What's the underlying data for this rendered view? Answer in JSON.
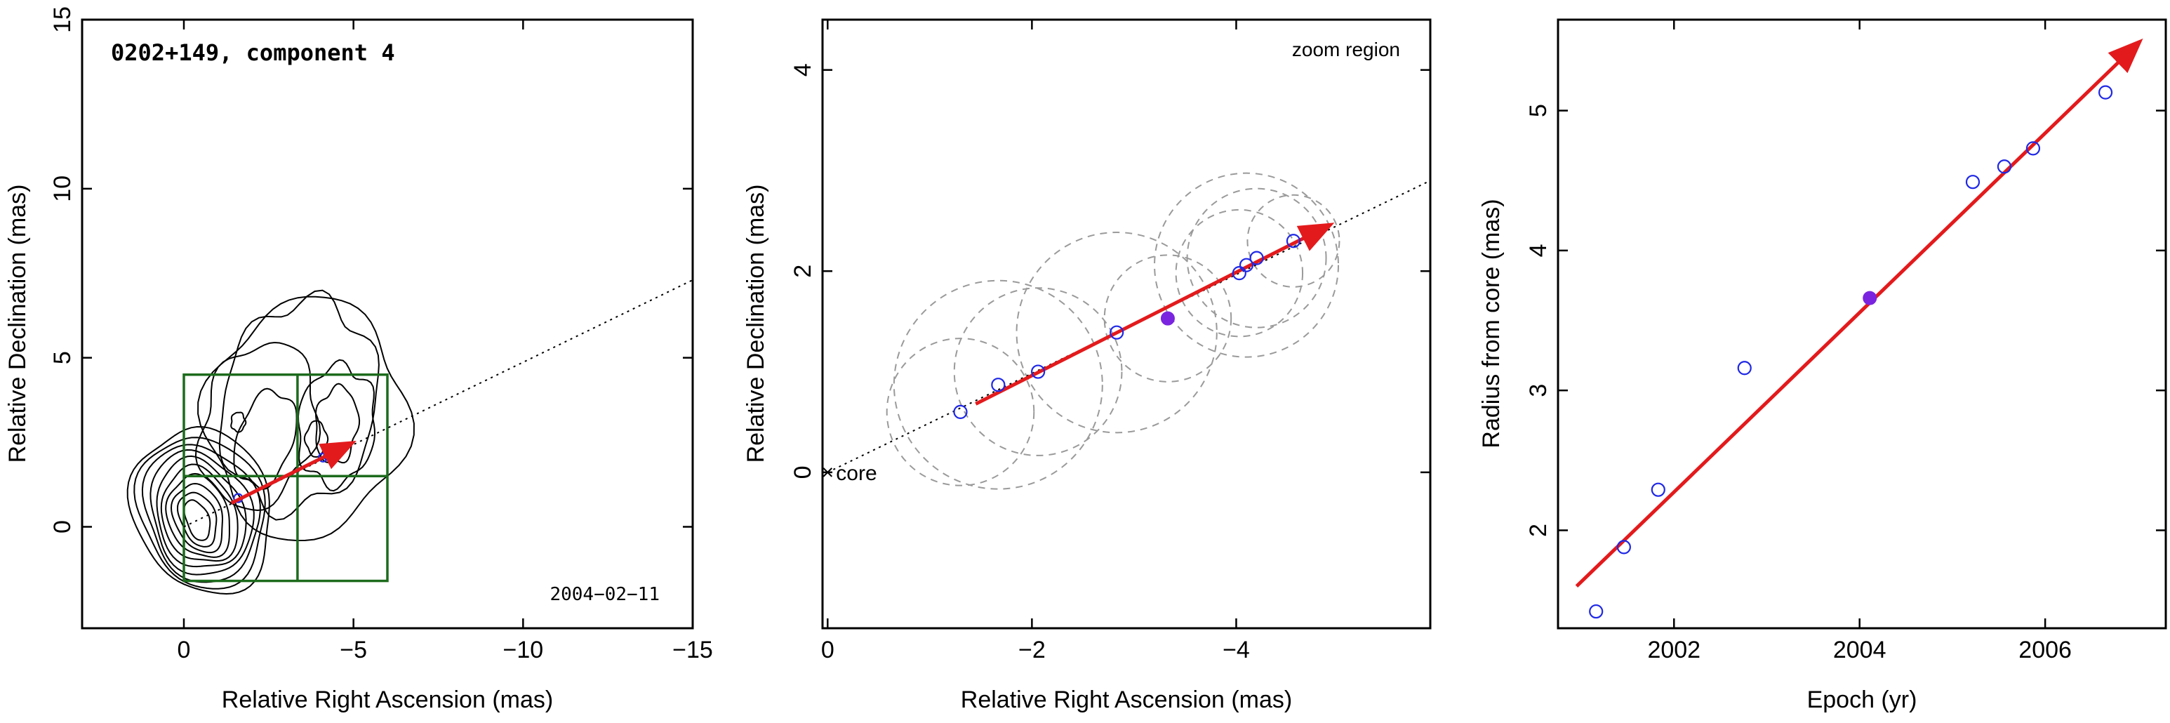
{
  "chart_data": [
    {
      "type": "scatter",
      "panel": "left",
      "title": "0202+149, component 4",
      "date_label": "2004−02−11",
      "xlabel": "Relative Right Ascension (mas)",
      "ylabel": "Relative Declination (mas)",
      "xlim": [
        3,
        -15
      ],
      "ylim": [
        -3,
        15
      ],
      "xticks": [
        0,
        -5,
        -10,
        -15
      ],
      "xtick_labels": [
        "0",
        "−5",
        "−10",
        "−15"
      ],
      "yticks": [
        0,
        5,
        10,
        15
      ],
      "ytick_labels": [
        "0",
        "5",
        "10",
        "15"
      ],
      "grid": false,
      "trajectory_line": {
        "from": [
          0,
          0
        ],
        "to": [
          -15,
          7.3
        ]
      },
      "velocity_arrow": {
        "from": [
          -1.4,
          0.7
        ],
        "to": [
          -4.9,
          2.45
        ]
      },
      "component_points": [
        {
          "x": -1.6,
          "y": 0.85
        },
        {
          "x": -4.1,
          "y": 2.05
        },
        {
          "x": -4.25,
          "y": 2.1
        }
      ],
      "zoom_box": {
        "x": [
          0,
          -6
        ],
        "y": [
          -1.6,
          4.5
        ],
        "cross_x": -3.35,
        "cross_y": 1.5
      }
    },
    {
      "type": "scatter",
      "panel": "middle",
      "title": "zoom region",
      "core_label": "core",
      "xlabel": "Relative Right Ascension (mas)",
      "ylabel": "Relative Declination (mas)",
      "xlim": [
        0.05,
        -5.9
      ],
      "ylim": [
        -1.55,
        4.5
      ],
      "xticks": [
        0,
        -2,
        -4
      ],
      "xtick_labels": [
        "0",
        "−2",
        "−4"
      ],
      "yticks": [
        0,
        2,
        4
      ],
      "ytick_labels": [
        "0",
        "2",
        "4"
      ],
      "grid": false,
      "trajectory_line": {
        "from": [
          0,
          0
        ],
        "to": [
          -5.9,
          2.9
        ]
      },
      "velocity_arrow": {
        "from": [
          -1.45,
          0.68
        ],
        "to": [
          -4.9,
          2.45
        ]
      },
      "series": [
        {
          "marker": "open-circle",
          "x": [
            -1.3,
            -1.67,
            -2.06,
            -2.83,
            -4.03,
            -4.1,
            -4.2,
            -4.56
          ],
          "y": [
            0.6,
            0.87,
            1.0,
            1.39,
            1.98,
            2.06,
            2.13,
            2.3
          ],
          "fwhm_radius": [
            0.72,
            1.02,
            0.82,
            0.98,
            0.62,
            0.9,
            0.68,
            0.45
          ]
        },
        {
          "marker": "filled-circle",
          "x": [
            -3.33
          ],
          "y": [
            1.53
          ],
          "fwhm_radius": [
            0.62
          ]
        }
      ]
    },
    {
      "type": "scatter",
      "panel": "right",
      "xlabel": "Epoch (yr)",
      "ylabel": "Radius from core (mas)",
      "xlim": [
        2000.75,
        2007.3
      ],
      "ylim": [
        1.3,
        5.65
      ],
      "xticks": [
        2002,
        2004,
        2006
      ],
      "xtick_labels": [
        "2002",
        "2004",
        "2006"
      ],
      "yticks": [
        2,
        3,
        4,
        5
      ],
      "ytick_labels": [
        "2",
        "3",
        "4",
        "5"
      ],
      "grid": false,
      "fit_line": {
        "x": [
          2000.95,
          2007.0
        ],
        "y": [
          1.6,
          5.48
        ]
      },
      "series": [
        {
          "marker": "open-circle",
          "x": [
            2001.16,
            2001.46,
            2001.83,
            2002.76,
            2005.22,
            2005.56,
            2005.87,
            2006.65
          ],
          "y": [
            1.42,
            1.88,
            2.29,
            3.16,
            4.49,
            4.6,
            4.73,
            5.13
          ]
        },
        {
          "marker": "filled-circle",
          "x": [
            2004.11
          ],
          "y": [
            3.66
          ]
        }
      ]
    }
  ]
}
